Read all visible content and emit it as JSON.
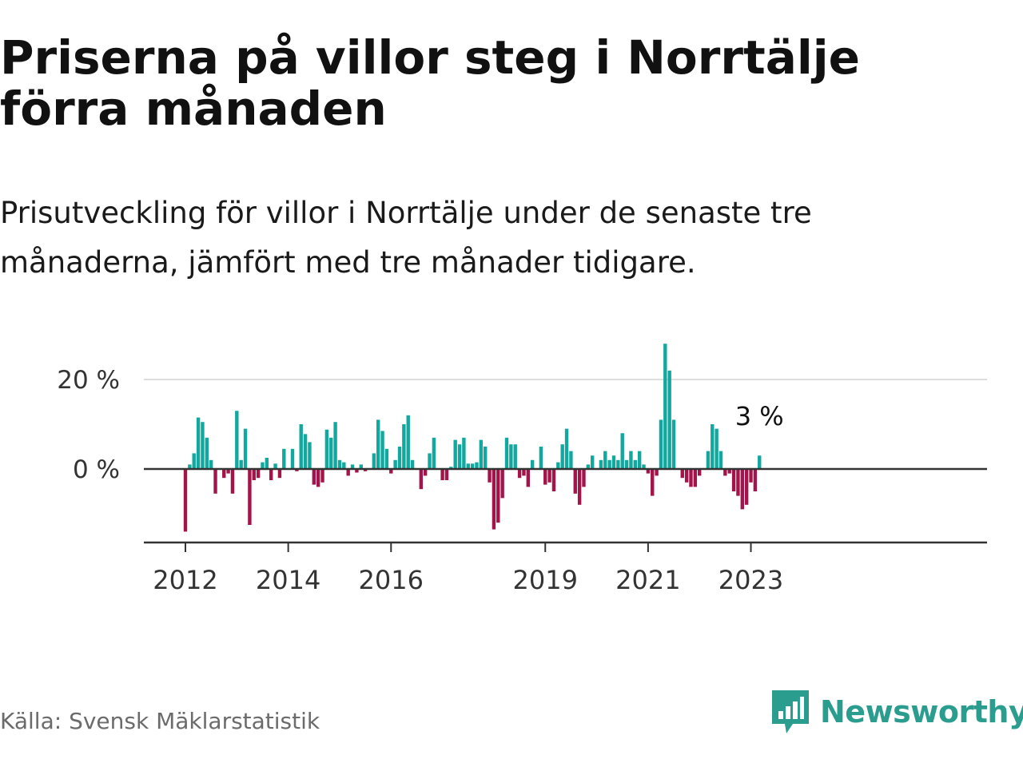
{
  "title": "Priserna på villor steg i Norrtälje förra månaden",
  "subtitle": "Prisutveckling för villor i Norrtälje under de senaste tre månaderna, jämfört med tre månader tidigare.",
  "source": "Källa: Svensk Mäklarstatistik",
  "brand": {
    "name": "Newsworthy",
    "icon": "newsworthy-logo-icon",
    "color": "#2b9d8f"
  },
  "colors": {
    "positive": "#13a89e",
    "negative": "#a3154a",
    "grid": "#dddddd",
    "baseline": "#333333"
  },
  "chart_data": {
    "type": "bar",
    "title": "Priserna på villor steg i Norrtälje förra månaden",
    "subtitle": "Prisutveckling för villor i Norrtälje under de senaste tre månaderna, jämfört med tre månader tidigare.",
    "xlabel": "",
    "ylabel": "",
    "unit": "%",
    "ylim": [
      -16,
      30
    ],
    "x_start": "2012-01",
    "yticks": [
      0,
      20
    ],
    "ytick_labels": [
      "0 %",
      "20 %"
    ],
    "xticks": [
      {
        "label": "2012",
        "month": "2012-01"
      },
      {
        "label": "2014",
        "month": "2014-01"
      },
      {
        "label": "2016",
        "month": "2016-01"
      },
      {
        "label": "2019",
        "month": "2019-01"
      },
      {
        "label": "2021",
        "month": "2021-01"
      },
      {
        "label": "2023",
        "month": "2023-01"
      }
    ],
    "grid": true,
    "legend": "none",
    "end_label": "3 %",
    "values": [
      -14,
      1,
      3.5,
      11.5,
      10.5,
      7,
      2,
      -5.5,
      0,
      -2,
      -1,
      -5.5,
      13,
      2,
      9,
      -12.5,
      -2.5,
      -2,
      1.5,
      2.5,
      -2.5,
      1.2,
      -2,
      4.5,
      0,
      4.5,
      -0.5,
      10,
      7.8,
      6,
      -3.5,
      -4,
      -3,
      8.8,
      7,
      10.5,
      2,
      1.5,
      -1.5,
      1,
      -0.8,
      1,
      -0.5,
      0,
      3.5,
      11,
      8.5,
      4.5,
      -1,
      2,
      5,
      10,
      12,
      2,
      0,
      -4.5,
      -1.5,
      3.5,
      7,
      0,
      -2.5,
      -2.5,
      0.5,
      6.5,
      5.5,
      7,
      1.2,
      1.2,
      1.5,
      6.5,
      5,
      -3,
      -13.5,
      -12,
      -6.5,
      7,
      5.5,
      5.5,
      -2,
      -1.5,
      -4,
      2,
      0,
      5,
      -3.5,
      -3,
      -5,
      1.5,
      5.5,
      9,
      4,
      -5.5,
      -8,
      -4,
      1,
      3,
      0,
      2,
      4,
      2,
      3,
      2,
      8,
      2,
      4,
      2,
      4,
      1,
      -1,
      -6,
      -1.5,
      11,
      28,
      22,
      11,
      0,
      -2,
      -3,
      -4,
      -4,
      -1.5,
      0,
      4,
      10,
      9,
      4,
      -1.5,
      -1,
      -5,
      -6,
      -9,
      -8,
      -3,
      -5,
      3
    ]
  }
}
